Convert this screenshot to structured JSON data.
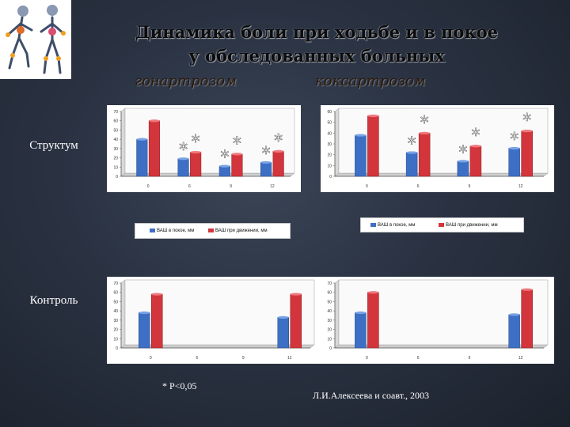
{
  "title_line1": "Динамика боли при ходьбе и в покое",
  "title_line2": "у обследованных больных",
  "subtitles": {
    "left": "гонартрозом",
    "right": "коксартрозом"
  },
  "row_labels": {
    "top": "Структум",
    "bottom": "Контроль"
  },
  "legends": [
    {
      "series1": "ВАШ в покое, мм",
      "series2": "ВАШ при движении, мм"
    },
    {
      "series1": "ВАШ в покое, мм",
      "series2": "ВАШ при движении, мм"
    }
  ],
  "footnote": "* P<0,05",
  "reference": "Л.И.Алексеева и соавт., 2003",
  "colors": {
    "rest": "#3d6fc4",
    "movement": "#d2353b",
    "background": "#252d3b"
  },
  "chart_data": [
    {
      "type": "bar",
      "panel": "Структум / гонартроз",
      "categories": [
        "0",
        "6",
        "9",
        "12"
      ],
      "series": [
        {
          "name": "ВАШ в покое, мм",
          "values": [
            40,
            19,
            11,
            15
          ]
        },
        {
          "name": "ВАШ при движении, мм",
          "values": [
            60,
            26,
            24,
            27
          ]
        }
      ],
      "ylim": [
        0,
        70
      ],
      "yticks": [
        "0",
        "10",
        "20",
        "30",
        "40",
        "50",
        "60",
        "70"
      ],
      "significance": [
        "",
        "* *",
        "* *",
        "* *"
      ]
    },
    {
      "type": "bar",
      "panel": "Структум / коксартроз",
      "categories": [
        "0",
        "6",
        "9",
        "12"
      ],
      "series": [
        {
          "name": "ВАШ в покое, мм",
          "values": [
            38,
            22,
            14,
            26
          ]
        },
        {
          "name": "ВАШ при движении, мм",
          "values": [
            56,
            40,
            28,
            42
          ]
        }
      ],
      "ylim": [
        0,
        60
      ],
      "yticks": [
        "0",
        "10",
        "20",
        "30",
        "40",
        "50",
        "60"
      ],
      "significance": [
        "",
        "* *",
        "* *",
        "* *"
      ]
    },
    {
      "type": "bar",
      "panel": "Контроль / гонартроз",
      "categories": [
        "0",
        "6",
        "9",
        "12"
      ],
      "series": [
        {
          "name": "ВАШ в покое, мм",
          "values": [
            38,
            null,
            null,
            33
          ]
        },
        {
          "name": "ВАШ при движении, мм",
          "values": [
            58,
            null,
            null,
            58
          ]
        }
      ],
      "ylim": [
        0,
        70
      ],
      "yticks": [
        "0",
        "10",
        "20",
        "30",
        "40",
        "50",
        "60",
        "70"
      ]
    },
    {
      "type": "bar",
      "panel": "Контроль / коксартроз",
      "categories": [
        "0",
        "6",
        "9",
        "12"
      ],
      "series": [
        {
          "name": "ВАШ в покое, мм",
          "values": [
            38,
            null,
            null,
            36
          ]
        },
        {
          "name": "ВАШ при движении, мм",
          "values": [
            60,
            null,
            null,
            63
          ]
        }
      ],
      "ylim": [
        0,
        70
      ],
      "yticks": [
        "0",
        "10",
        "20",
        "30",
        "40",
        "50",
        "60",
        "70"
      ]
    }
  ]
}
